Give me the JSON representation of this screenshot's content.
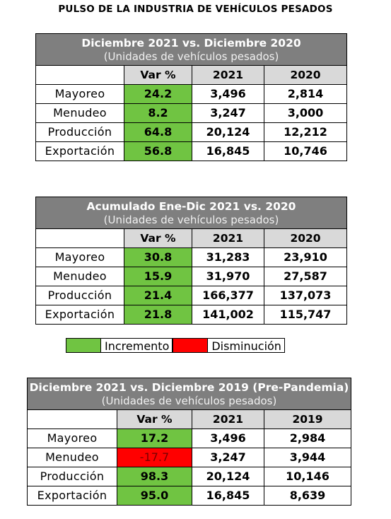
{
  "title": "PULSO DE LA INDUSTRIA DE VEHÍCULOS PESADOS",
  "colors": {
    "header_bg": "#7f7f7f",
    "col_header_bg": "#d9d9d9",
    "increase": "#70c442",
    "decrease": "#ff0000"
  },
  "tables": [
    {
      "title": "Diciembre 2021 vs. Diciembre 2020",
      "subtitle": "(Unidades de vehículos pesados)",
      "columns": [
        "",
        "Var %",
        "2021",
        "2020"
      ],
      "rows": [
        {
          "label": "Mayoreo",
          "var": "24.2",
          "a": "3,496",
          "b": "2,814",
          "trend": "increase"
        },
        {
          "label": "Menudeo",
          "var": "8.2",
          "a": "3,247",
          "b": "3,000",
          "trend": "increase"
        },
        {
          "label": "Producción",
          "var": "64.8",
          "a": "20,124",
          "b": "12,212",
          "trend": "increase"
        },
        {
          "label": "Exportación",
          "var": "56.8",
          "a": "16,845",
          "b": "10,746",
          "trend": "increase"
        }
      ]
    },
    {
      "title": "Acumulado Ene-Dic 2021 vs. 2020",
      "subtitle": "(Unidades de vehículos pesados)",
      "columns": [
        "",
        "Var %",
        "2021",
        "2020"
      ],
      "rows": [
        {
          "label": "Mayoreo",
          "var": "30.8",
          "a": "31,283",
          "b": "23,910",
          "trend": "increase"
        },
        {
          "label": "Menudeo",
          "var": "15.9",
          "a": "31,970",
          "b": "27,587",
          "trend": "increase"
        },
        {
          "label": "Producción",
          "var": "21.4",
          "a": "166,377",
          "b": "137,073",
          "trend": "increase"
        },
        {
          "label": "Exportación",
          "var": "21.8",
          "a": "141,002",
          "b": "115,747",
          "trend": "increase"
        }
      ]
    },
    {
      "title": "Diciembre 2021 vs. Diciembre 2019 (Pre-Pandemia)",
      "subtitle": "(Unidades de vehículos pesados)",
      "columns": [
        "",
        "Var %",
        "2021",
        "2019"
      ],
      "rows": [
        {
          "label": "Mayoreo",
          "var": "17.2",
          "a": "3,496",
          "b": "2,984",
          "trend": "increase"
        },
        {
          "label": "Menudeo",
          "var": "-17.7",
          "a": "3,247",
          "b": "3,944",
          "trend": "decrease"
        },
        {
          "label": "Producción",
          "var": "98.3",
          "a": "20,124",
          "b": "10,146",
          "trend": "increase"
        },
        {
          "label": "Exportación",
          "var": "95.0",
          "a": "16,845",
          "b": "8,639",
          "trend": "increase"
        }
      ]
    }
  ],
  "legend": {
    "increase_label": "Incremento",
    "decrease_label": "Disminución"
  }
}
